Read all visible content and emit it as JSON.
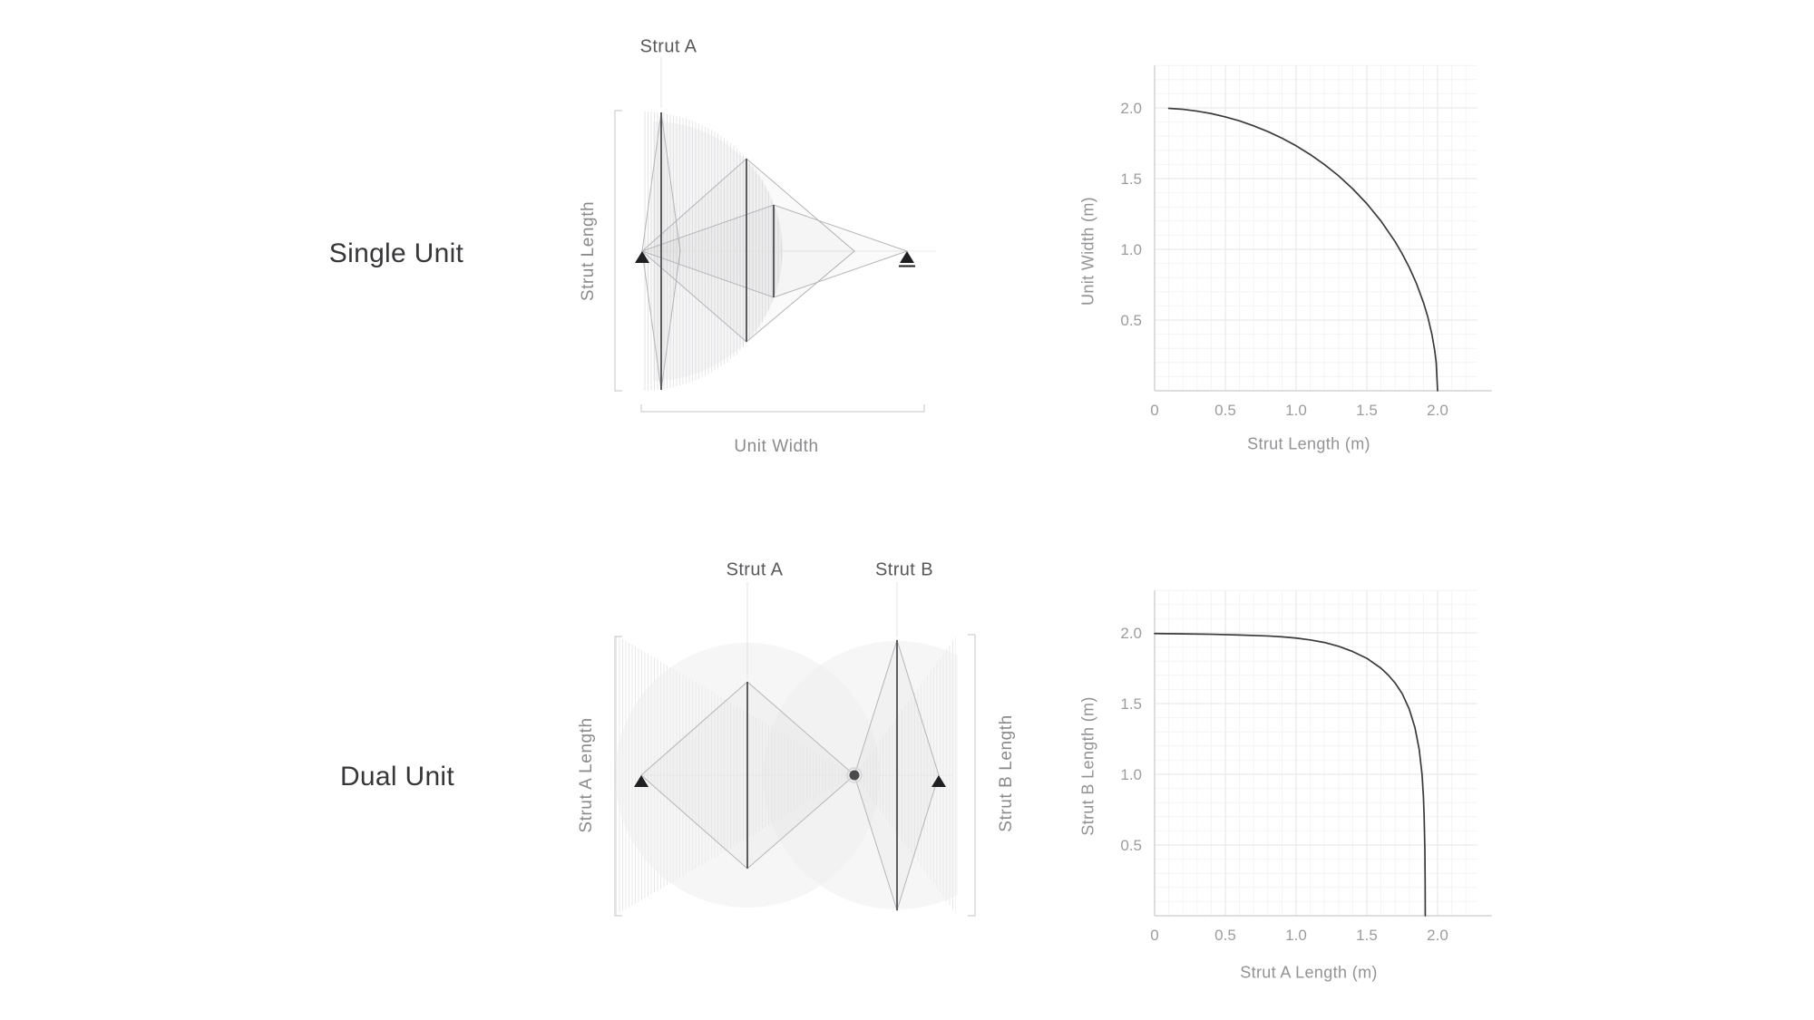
{
  "figure": {
    "background": "#ffffff",
    "style": {
      "curve_color": "#3a3a3d",
      "grid_major_color": "#e5e5e7",
      "grid_minor_color": "#f4f4f5",
      "spine_color": "#cbcbcd",
      "tick_text_color": "#9c9c9f",
      "strut_color": "#5d5d60",
      "linkage_color": "#b5b5b8",
      "bracket_color": "#cfcfd1",
      "marker_color": "#1f1f22",
      "sweep_fill": "#ededee"
    },
    "icons": {
      "pin_support": "filled-triangle-icon",
      "roller_support": "filled-triangle-underline-icon",
      "revolute_joint": "filled-dot-icon"
    }
  },
  "sections": [
    {
      "title": "Single Unit",
      "diagram": {
        "strut_a_label": "Strut A",
        "length_bracket_label": "Strut Length",
        "width_bracket_label": "Unit Width"
      }
    },
    {
      "title": "Dual Unit",
      "diagram": {
        "strut_a_label": "Strut A",
        "strut_b_label": "Strut B",
        "left_bracket_label": "Strut A Length",
        "right_bracket_label": "Strut B Length"
      }
    }
  ],
  "chart_data": [
    {
      "type": "line",
      "title": "",
      "xlabel": "Strut Length (m)",
      "ylabel": "Unit Width (m)",
      "xlim": [
        0,
        2.28
      ],
      "ylim": [
        0,
        2.3
      ],
      "grid": "major+minor",
      "legend": "none",
      "xticks": [
        [
          0,
          "0"
        ],
        [
          0.5,
          "0.5"
        ],
        [
          1,
          "1.0"
        ],
        [
          1.5,
          "1.5"
        ],
        [
          2,
          "2.0"
        ]
      ],
      "yticks": [
        [
          0.5,
          "0.5"
        ],
        [
          1,
          "1.0"
        ],
        [
          1.5,
          "1.5"
        ],
        [
          2,
          "2.0"
        ]
      ],
      "points": [
        [
          0.1,
          1.997
        ],
        [
          0.2,
          1.99
        ],
        [
          0.3,
          1.977
        ],
        [
          0.4,
          1.96
        ],
        [
          0.5,
          1.936
        ],
        [
          0.6,
          1.908
        ],
        [
          0.7,
          1.873
        ],
        [
          0.8,
          1.833
        ],
        [
          0.9,
          1.786
        ],
        [
          1.0,
          1.732
        ],
        [
          1.1,
          1.67
        ],
        [
          1.2,
          1.6
        ],
        [
          1.3,
          1.52
        ],
        [
          1.4,
          1.428
        ],
        [
          1.5,
          1.323
        ],
        [
          1.6,
          1.2
        ],
        [
          1.7,
          1.054
        ],
        [
          1.75,
          0.968
        ],
        [
          1.8,
          0.872
        ],
        [
          1.85,
          0.76
        ],
        [
          1.9,
          0.624
        ],
        [
          1.93,
          0.525
        ],
        [
          1.96,
          0.398
        ],
        [
          1.98,
          0.282
        ],
        [
          1.99,
          0.2
        ],
        [
          2.0,
          0.0
        ]
      ]
    },
    {
      "type": "line",
      "title": "",
      "xlabel": "Strut A Length (m)",
      "ylabel": "Strut B Length (m)",
      "xlim": [
        0,
        2.28
      ],
      "ylim": [
        0,
        2.3
      ],
      "grid": "major+minor",
      "legend": "none",
      "xticks": [
        [
          0,
          "0"
        ],
        [
          0.5,
          "0.5"
        ],
        [
          1,
          "1.0"
        ],
        [
          1.5,
          "1.5"
        ],
        [
          2,
          "2.0"
        ]
      ],
      "yticks": [
        [
          0.5,
          "0.5"
        ],
        [
          1,
          "1.0"
        ],
        [
          1.5,
          "1.5"
        ],
        [
          2,
          "2.0"
        ]
      ],
      "points": [
        [
          0.0,
          1.995
        ],
        [
          0.2,
          1.993
        ],
        [
          0.4,
          1.99
        ],
        [
          0.6,
          1.985
        ],
        [
          0.8,
          1.978
        ],
        [
          0.9,
          1.972
        ],
        [
          1.0,
          1.963
        ],
        [
          1.1,
          1.95
        ],
        [
          1.2,
          1.932
        ],
        [
          1.3,
          1.905
        ],
        [
          1.4,
          1.868
        ],
        [
          1.5,
          1.82
        ],
        [
          1.6,
          1.75
        ],
        [
          1.65,
          1.703
        ],
        [
          1.7,
          1.645
        ],
        [
          1.75,
          1.57
        ],
        [
          1.8,
          1.46
        ],
        [
          1.84,
          1.33
        ],
        [
          1.87,
          1.175
        ],
        [
          1.89,
          1.0
        ],
        [
          1.9,
          0.84
        ],
        [
          1.905,
          0.7
        ],
        [
          1.91,
          0.48
        ],
        [
          1.912,
          0.25
        ],
        [
          1.913,
          0.0
        ]
      ]
    }
  ]
}
